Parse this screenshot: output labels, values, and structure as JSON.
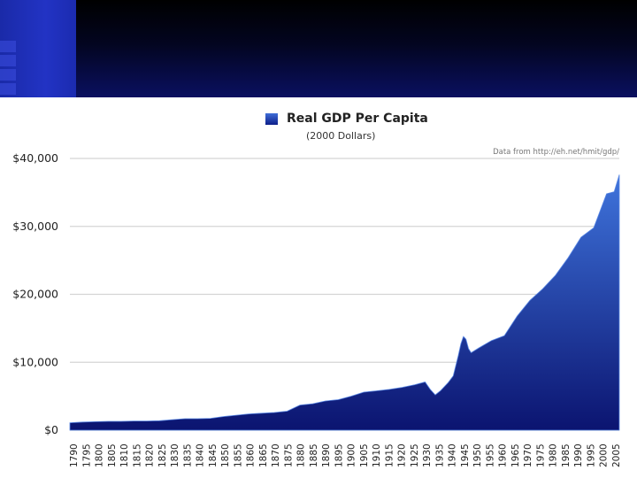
{
  "legend": {
    "label": "Real GDP Per Capita"
  },
  "subtitle": "(2000 Dollars)",
  "source": "Data from http://eh.net/hmit/gdp/",
  "colors": {
    "area_top": "#3f74dc",
    "area_bottom": "#0b1470",
    "grid": "#d4d4d4",
    "banner_accent": "#2233c4"
  },
  "chart_data": {
    "type": "area",
    "title": "Real GDP Per Capita",
    "subtitle": "(2000 Dollars)",
    "xlabel": "",
    "ylabel": "",
    "ylim": [
      0,
      40000
    ],
    "xlim": [
      1790,
      2005
    ],
    "grid": true,
    "legend": "top",
    "yticks": [
      0,
      10000,
      20000,
      30000,
      40000
    ],
    "ytick_labels": [
      "$0",
      "$10,000",
      "$20,000",
      "$30,000",
      "$40,000"
    ],
    "xtick_labels": [
      "1790",
      "1795",
      "1800",
      "1805",
      "1810",
      "1815",
      "1820",
      "1825",
      "1830",
      "1835",
      "1840",
      "1845",
      "1850",
      "1855",
      "1860",
      "1865",
      "1870",
      "1875",
      "1880",
      "1885",
      "1890",
      "1895",
      "1900",
      "1905",
      "1910",
      "1915",
      "1920",
      "1925",
      "1930",
      "1935",
      "1940",
      "1945",
      "1950",
      "1955",
      "1960",
      "1965",
      "1970",
      "1975",
      "1980",
      "1985",
      "1990",
      "1995",
      "2000",
      "2005"
    ],
    "series": [
      {
        "name": "Real GDP Per Capita",
        "x": [
          1790,
          1795,
          1800,
          1805,
          1810,
          1815,
          1820,
          1825,
          1830,
          1835,
          1840,
          1845,
          1850,
          1855,
          1860,
          1865,
          1870,
          1875,
          1880,
          1885,
          1890,
          1895,
          1900,
          1905,
          1910,
          1915,
          1920,
          1925,
          1929,
          1931,
          1933,
          1935,
          1938,
          1940,
          1942,
          1943,
          1944,
          1945,
          1946,
          1947,
          1950,
          1955,
          1960,
          1965,
          1970,
          1975,
          1980,
          1985,
          1990,
          1995,
          2000,
          2003,
          2005
        ],
        "values": [
          1100,
          1200,
          1250,
          1300,
          1300,
          1350,
          1350,
          1400,
          1550,
          1700,
          1700,
          1750,
          2000,
          2200,
          2400,
          2500,
          2600,
          2800,
          3700,
          3900,
          4300,
          4500,
          5000,
          5600,
          5800,
          6000,
          6300,
          6700,
          7100,
          6000,
          5200,
          5800,
          7000,
          8000,
          11000,
          12700,
          13800,
          13400,
          12000,
          11400,
          12100,
          13200,
          13900,
          16800,
          19100,
          20800,
          22800,
          25400,
          28400,
          29800,
          34800,
          35100,
          37600
        ]
      }
    ]
  }
}
